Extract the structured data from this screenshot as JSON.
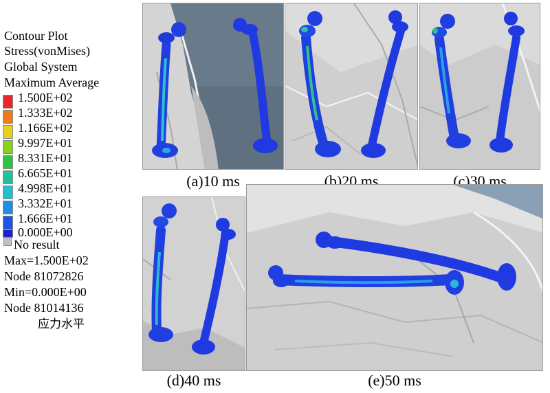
{
  "legend": {
    "lines": [
      "Contour Plot",
      "Stress(vonMises)",
      "Global System",
      "Maximum Average"
    ],
    "levels": [
      {
        "value": "1.500E+02",
        "color": "#e8262b"
      },
      {
        "value": "1.333E+02",
        "color": "#f07a1c"
      },
      {
        "value": "1.166E+02",
        "color": "#e4d21e"
      },
      {
        "value": "9.997E+01",
        "color": "#86d21c"
      },
      {
        "value": "8.331E+01",
        "color": "#2ec43e"
      },
      {
        "value": "6.665E+01",
        "color": "#1fc29a"
      },
      {
        "value": "4.998E+01",
        "color": "#22c0cf"
      },
      {
        "value": "3.332E+01",
        "color": "#1f8ce6"
      },
      {
        "value": "1.666E+01",
        "color": "#1e52e6"
      },
      {
        "value": "0.000E+00",
        "color": "#1e22c8"
      }
    ],
    "no_result": {
      "label": "No result",
      "color": "#c0c0c0"
    },
    "max": "Max=1.500E+02",
    "max_node": "Node 81072826",
    "min": "Min=0.000E+00",
    "min_node": "Node 81014136",
    "cn_label": "应力水平"
  },
  "panels": [
    {
      "caption": "(a)10 ms"
    },
    {
      "caption": "(b)20 ms"
    },
    {
      "caption": "(c)30 ms"
    },
    {
      "caption": "(d)40 ms"
    },
    {
      "caption": "(e)50 ms"
    }
  ]
}
